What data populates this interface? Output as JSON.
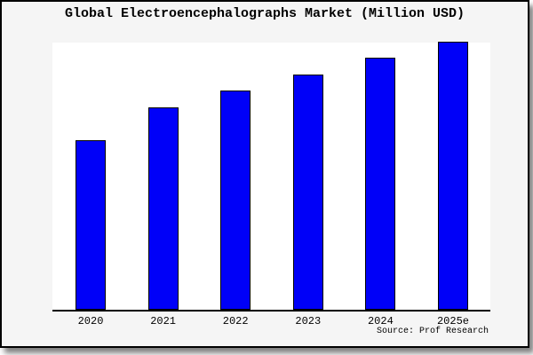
{
  "title": "Global Electroencephalographs Market (Million USD)",
  "source_label": "Source: Prof Research",
  "colors": {
    "bar_fill": "#0000f8",
    "bar_border": "#000000",
    "figure_background": "#f5f5f5",
    "plot_background": "#ffffff",
    "border": "#000000"
  },
  "chart_data": {
    "type": "bar",
    "title": "Global Electroencephalographs Market (Million USD)",
    "categories": [
      "2020",
      "2021",
      "2022",
      "2023",
      "2024",
      "2025e"
    ],
    "values": [
      63,
      75.3,
      81.7,
      87.7,
      94,
      100
    ],
    "units": "relative (no y-axis labels shown in source)",
    "xlabel": "",
    "ylabel": "",
    "ylim": [
      0,
      101
    ],
    "grid": false,
    "legend": false,
    "annotation": "Source: Prof Research"
  }
}
